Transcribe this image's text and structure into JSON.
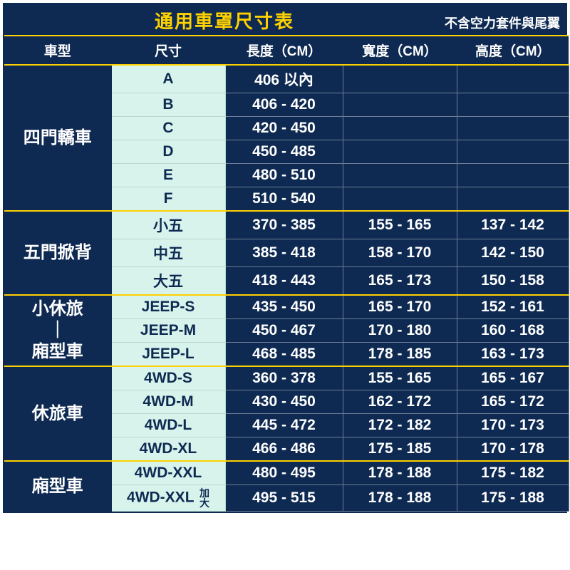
{
  "title": "通用車罩尺寸表",
  "note": "不含空力套件與尾翼",
  "columns": [
    "車型",
    "尺寸",
    "長度（CM）",
    "寬度（CM）",
    "高度（CM）"
  ],
  "groups": [
    {
      "category": "四門轎車",
      "rows": [
        {
          "size": "A",
          "l": "406 以內",
          "w": "",
          "h": ""
        },
        {
          "size": "B",
          "l": "406 - 420",
          "w": "",
          "h": ""
        },
        {
          "size": "C",
          "l": "420 - 450",
          "w": "",
          "h": ""
        },
        {
          "size": "D",
          "l": "450 - 485",
          "w": "",
          "h": ""
        },
        {
          "size": "E",
          "l": "480 - 510",
          "w": "",
          "h": ""
        },
        {
          "size": "F",
          "l": "510 - 540",
          "w": "",
          "h": ""
        }
      ]
    },
    {
      "category": "五門掀背",
      "rows": [
        {
          "size": "小五",
          "l": "370 - 385",
          "w": "155 - 165",
          "h": "137 - 142"
        },
        {
          "size": "中五",
          "l": "385 - 418",
          "w": "158 - 170",
          "h": "142 - 150"
        },
        {
          "size": "大五",
          "l": "418 - 443",
          "w": "165 - 173",
          "h": "150 - 158"
        }
      ]
    },
    {
      "category": "小休旅<br>｜<br>廂型車",
      "rows": [
        {
          "size": "JEEP-S",
          "l": "435 - 450",
          "w": "165 - 170",
          "h": "152 - 161"
        },
        {
          "size": "JEEP-M",
          "l": "450 - 467",
          "w": "170 - 180",
          "h": "160 - 168"
        },
        {
          "size": "JEEP-L",
          "l": "468 - 485",
          "w": "178 - 185",
          "h": "163 - 173"
        }
      ]
    },
    {
      "category": "休旅車",
      "rows": [
        {
          "size": "4WD-S",
          "l": "360 - 378",
          "w": "155 - 165",
          "h": "165 - 167"
        },
        {
          "size": "4WD-M",
          "l": "430 - 450",
          "w": "162 - 172",
          "h": "165 - 172"
        },
        {
          "size": "4WD-L",
          "l": "445 - 472",
          "w": "172 - 182",
          "h": "170 - 173"
        },
        {
          "size": "4WD-XL",
          "l": "466 - 486",
          "w": "175 - 185",
          "h": "170 - 178"
        }
      ]
    },
    {
      "category": "廂型車",
      "rows": [
        {
          "size": "4WD-XXL",
          "l": "480 - 495",
          "w": "178 - 188",
          "h": "175 - 182"
        },
        {
          "size": "4WD-XXL <span class=\"sub\">加<br>大</span>",
          "l": "495 - 515",
          "w": "178 - 188",
          "h": "175 - 188"
        }
      ]
    }
  ],
  "colors": {
    "navy": "#0e2a52",
    "accent": "#ffd100",
    "mint": "#d8f3ec",
    "cell_border": "#6d7e96",
    "mint_border": "#b7d9cf"
  }
}
